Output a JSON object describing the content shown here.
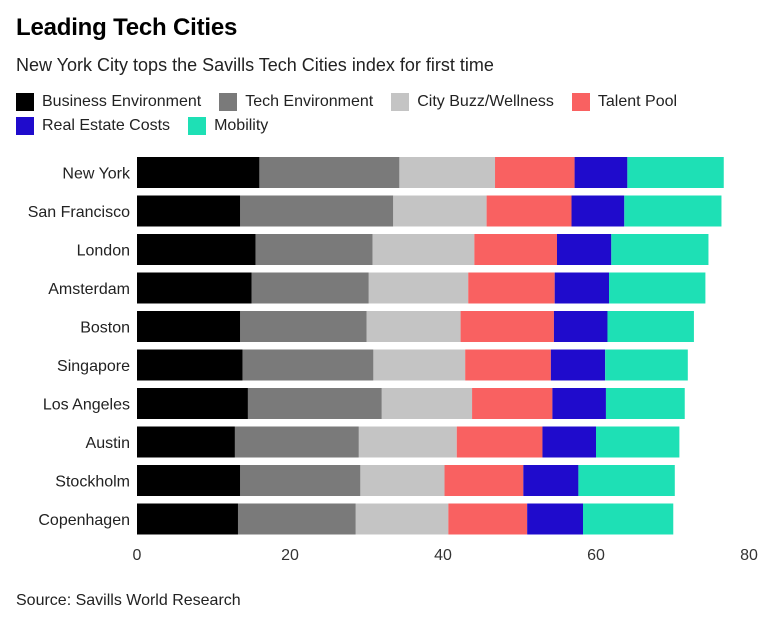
{
  "chart_data": {
    "type": "bar",
    "orientation": "horizontal",
    "stacked": true,
    "title": "Leading Tech Cities",
    "subtitle": "New York City tops the Savills Tech Cities index for first time",
    "source": "Source: Savills World Research",
    "xlim": [
      0,
      80
    ],
    "xticks": [
      0,
      20,
      40,
      60,
      80
    ],
    "grid": false,
    "legend_position": "top",
    "categories": [
      "New York",
      "San Francisco",
      "London",
      "Amsterdam",
      "Boston",
      "Singapore",
      "Los Angeles",
      "Austin",
      "Stockholm",
      "Copenhagen"
    ],
    "series": [
      {
        "name": "Business Environment",
        "color": "#000000",
        "values": [
          16.0,
          13.5,
          15.5,
          15.0,
          13.5,
          13.8,
          14.5,
          12.8,
          13.5,
          13.2
        ]
      },
      {
        "name": "Tech Environment",
        "color": "#7a7a7a",
        "values": [
          18.3,
          20.0,
          15.3,
          15.3,
          16.5,
          17.1,
          17.5,
          16.2,
          15.7,
          15.4
        ]
      },
      {
        "name": "City Buzz/Wellness",
        "color": "#c4c4c4",
        "values": [
          12.5,
          12.2,
          13.3,
          13.0,
          12.3,
          12.0,
          11.8,
          12.8,
          11.0,
          12.1
        ]
      },
      {
        "name": "Talent Pool",
        "color": "#f96161",
        "values": [
          10.4,
          11.1,
          10.8,
          11.3,
          12.2,
          11.2,
          10.5,
          11.2,
          10.3,
          10.3
        ]
      },
      {
        "name": "Real Estate Costs",
        "color": "#1f0bcc",
        "values": [
          6.9,
          6.9,
          7.1,
          7.1,
          7.0,
          7.1,
          7.0,
          7.0,
          7.2,
          7.3
        ]
      },
      {
        "name": "Mobility",
        "color": "#1ee0b5",
        "values": [
          12.6,
          12.7,
          12.7,
          12.6,
          11.3,
          10.8,
          10.3,
          10.9,
          12.6,
          11.8
        ]
      }
    ]
  }
}
